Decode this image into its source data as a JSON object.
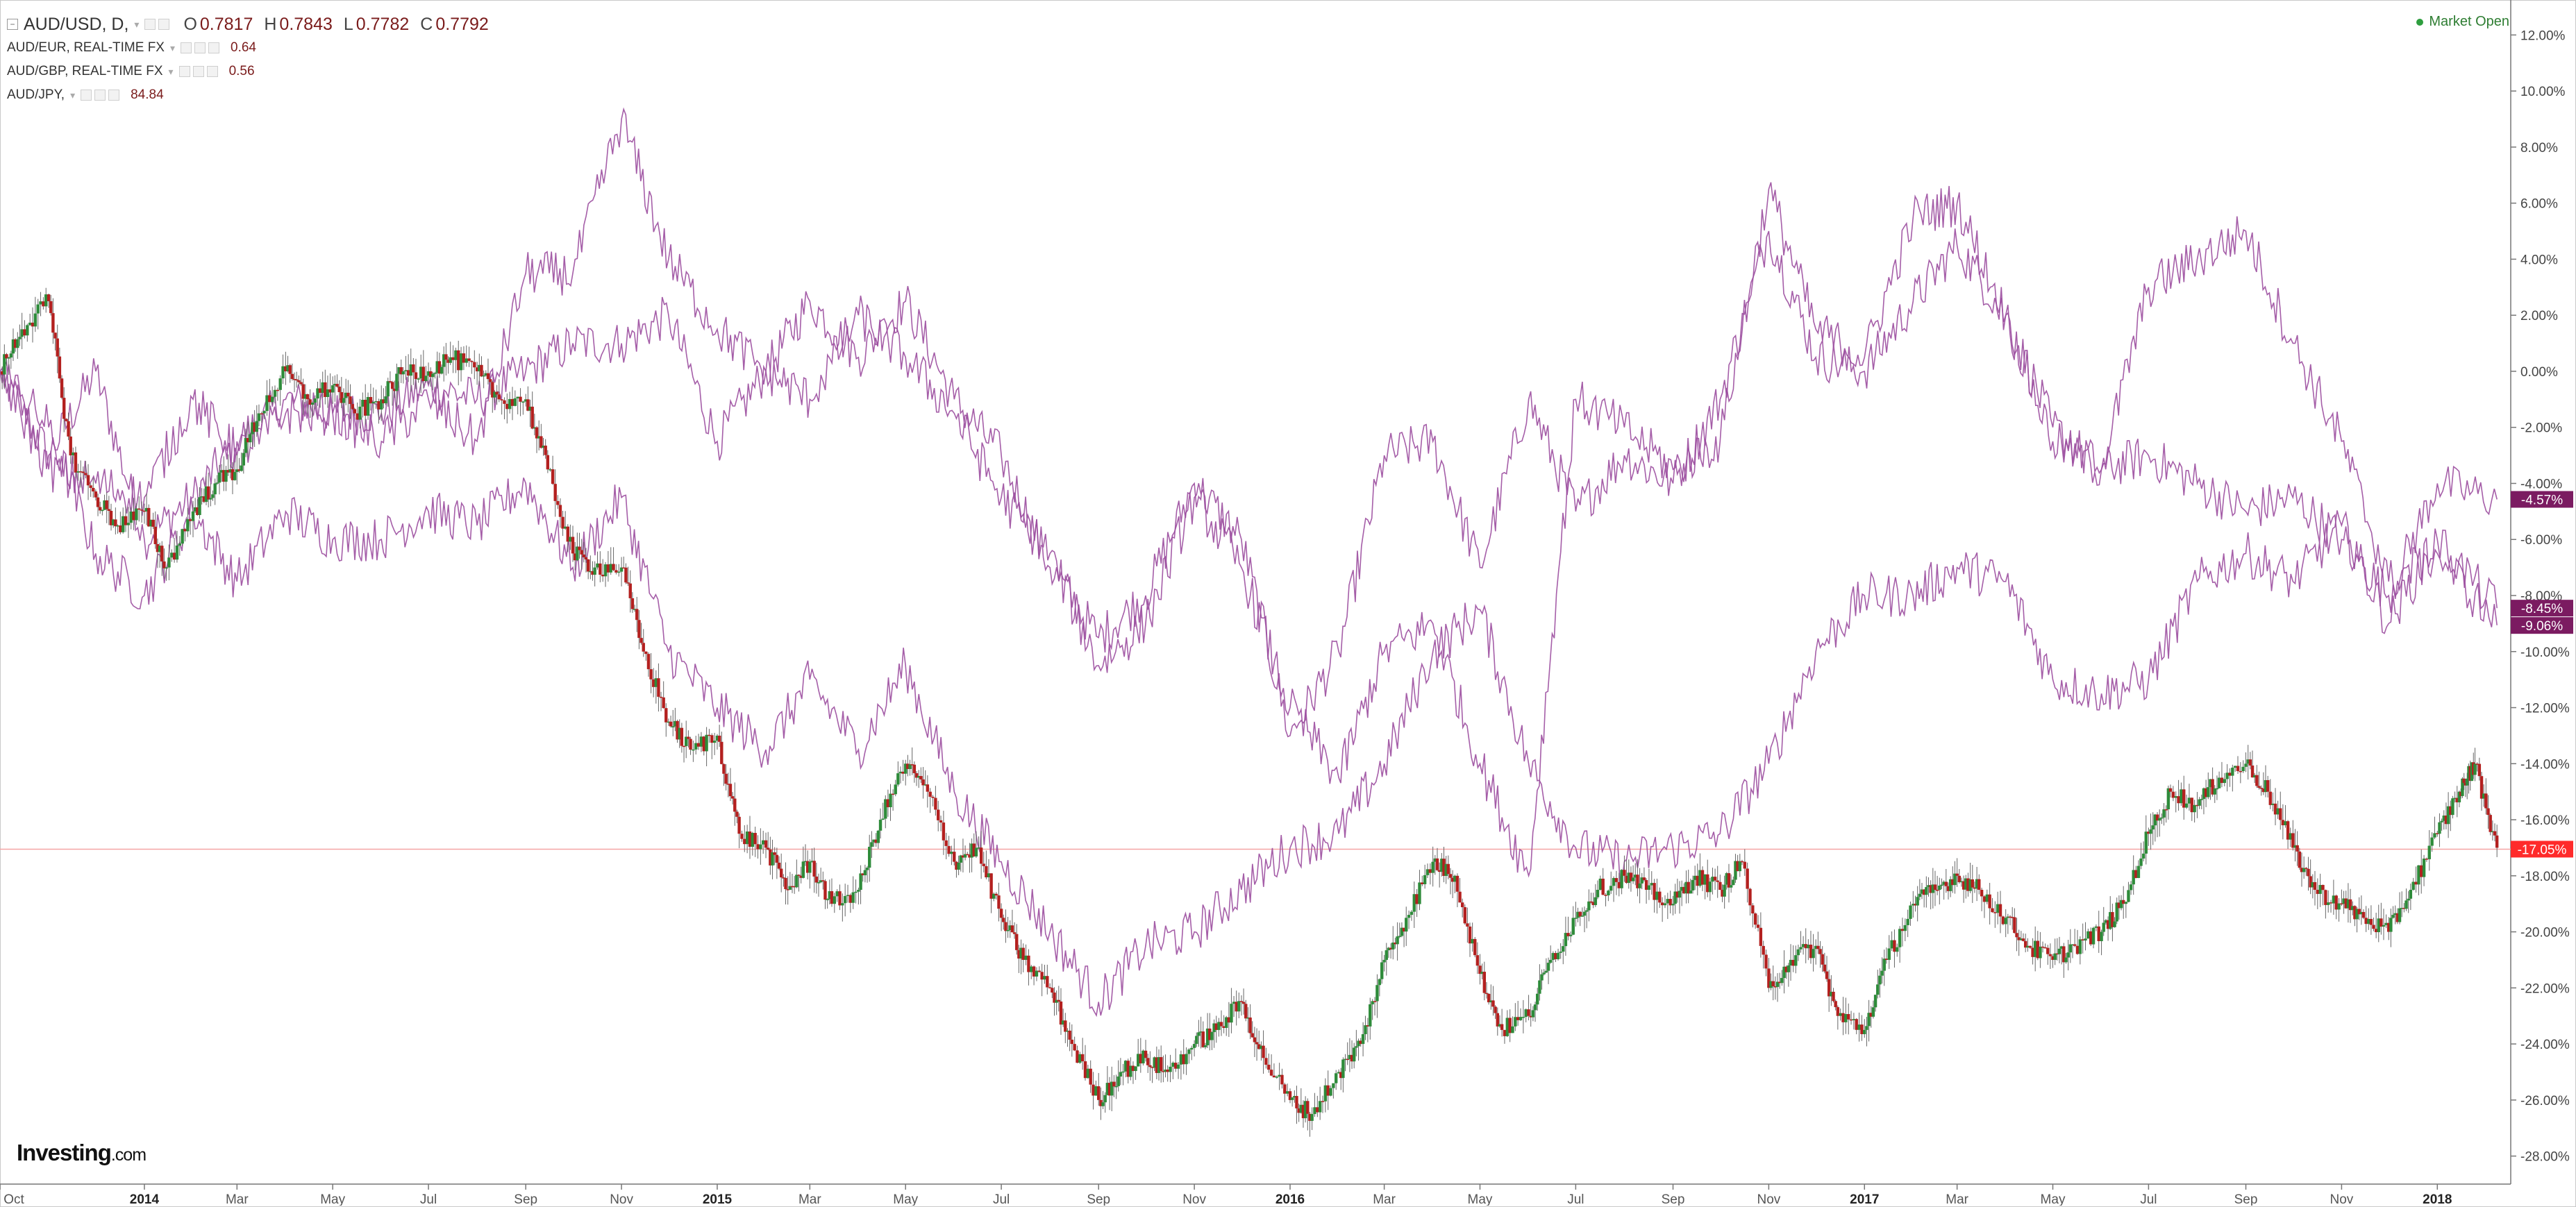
{
  "legend": {
    "main": {
      "symbol": "AUD/USD, D,",
      "open_label": "O",
      "open": "0.7817",
      "high_label": "H",
      "high": "0.7843",
      "low_label": "L",
      "low": "0.7782",
      "close_label": "C",
      "close": "0.7792"
    },
    "compare": [
      {
        "symbol": "AUD/EUR, REAL-TIME FX",
        "value": "0.64"
      },
      {
        "symbol": "AUD/GBP, REAL-TIME FX",
        "value": "0.56"
      },
      {
        "symbol": "AUD/JPY,",
        "value": "84.84"
      }
    ]
  },
  "status": {
    "market_open": "Market Open"
  },
  "logo": {
    "brand": "Investing",
    "suffix": ".com"
  },
  "colors": {
    "up": "#2e8b3a",
    "down": "#b3201f",
    "compare": "#9b4c9e",
    "compare_dark": "#7b1b61",
    "last_price": "#ff2b2b",
    "price_line": "#f6a5a5"
  },
  "chart_data": {
    "type": "line",
    "title": "",
    "ylabel": "",
    "y_unit": "%",
    "ylim": [
      -29,
      13
    ],
    "y_ticks": [
      "12.00%",
      "10.00%",
      "8.00%",
      "6.00%",
      "4.00%",
      "2.00%",
      "0.00%",
      "-2.00%",
      "-4.00%",
      "-6.00%",
      "-8.00%",
      "-10.00%",
      "-12.00%",
      "-14.00%",
      "-16.00%",
      "-18.00%",
      "-20.00%",
      "-22.00%",
      "-24.00%",
      "-26.00%",
      "-28.00%"
    ],
    "xlim": [
      "2013-10-01",
      "2018-02-15"
    ],
    "x_ticks": [
      {
        "label": "Oct",
        "date": "2013-10-01",
        "bold": false
      },
      {
        "label": "2014",
        "date": "2014-01-01",
        "bold": true
      },
      {
        "label": "Mar",
        "date": "2014-03-01",
        "bold": false
      },
      {
        "label": "May",
        "date": "2014-05-01",
        "bold": false
      },
      {
        "label": "Jul",
        "date": "2014-07-01",
        "bold": false
      },
      {
        "label": "Sep",
        "date": "2014-09-01",
        "bold": false
      },
      {
        "label": "Nov",
        "date": "2014-11-01",
        "bold": false
      },
      {
        "label": "2015",
        "date": "2015-01-01",
        "bold": true
      },
      {
        "label": "Mar",
        "date": "2015-03-01",
        "bold": false
      },
      {
        "label": "May",
        "date": "2015-05-01",
        "bold": false
      },
      {
        "label": "Jul",
        "date": "2015-07-01",
        "bold": false
      },
      {
        "label": "Sep",
        "date": "2015-09-01",
        "bold": false
      },
      {
        "label": "Nov",
        "date": "2015-11-01",
        "bold": false
      },
      {
        "label": "2016",
        "date": "2016-01-01",
        "bold": true
      },
      {
        "label": "Mar",
        "date": "2016-03-01",
        "bold": false
      },
      {
        "label": "May",
        "date": "2016-05-01",
        "bold": false
      },
      {
        "label": "Jul",
        "date": "2016-07-01",
        "bold": false
      },
      {
        "label": "Sep",
        "date": "2016-09-01",
        "bold": false
      },
      {
        "label": "Nov",
        "date": "2016-11-01",
        "bold": false
      },
      {
        "label": "2017",
        "date": "2017-01-01",
        "bold": true
      },
      {
        "label": "Mar",
        "date": "2017-03-01",
        "bold": false
      },
      {
        "label": "May",
        "date": "2017-05-01",
        "bold": false
      },
      {
        "label": "Jul",
        "date": "2017-07-01",
        "bold": false
      },
      {
        "label": "Sep",
        "date": "2017-09-01",
        "bold": false
      },
      {
        "label": "Nov",
        "date": "2017-11-01",
        "bold": false
      },
      {
        "label": "2018",
        "date": "2018-01-01",
        "bold": true
      }
    ],
    "last_value_labels": [
      {
        "series": "AUD/USD, D,",
        "text": "-17.05%",
        "value": -17.05
      },
      {
        "series": "AUD/EUR, REAL-TIME FX",
        "text": "-4.57%",
        "value": -4.57
      },
      {
        "series": "AUD/GBP, REAL-TIME FX",
        "text": "-8.45%",
        "value": -8.45
      },
      {
        "series": "AUD/JPY,",
        "text": "-9.06%",
        "value": -9.06
      }
    ],
    "series": [
      {
        "name": "AUD/USD, D,",
        "style": "candlestick",
        "x": [
          "2013-10-01",
          "2013-10-15",
          "2013-11-01",
          "2013-11-15",
          "2013-12-01",
          "2013-12-15",
          "2014-01-01",
          "2014-01-15",
          "2014-02-01",
          "2014-02-15",
          "2014-03-01",
          "2014-03-15",
          "2014-04-01",
          "2014-04-15",
          "2014-05-01",
          "2014-05-15",
          "2014-06-01",
          "2014-06-15",
          "2014-07-01",
          "2014-07-15",
          "2014-08-01",
          "2014-08-15",
          "2014-09-01",
          "2014-09-15",
          "2014-10-01",
          "2014-10-15",
          "2014-11-01",
          "2014-11-15",
          "2014-12-01",
          "2014-12-15",
          "2015-01-01",
          "2015-01-15",
          "2015-02-01",
          "2015-02-15",
          "2015-03-01",
          "2015-03-15",
          "2015-04-01",
          "2015-04-15",
          "2015-05-01",
          "2015-05-15",
          "2015-06-01",
          "2015-06-15",
          "2015-07-01",
          "2015-07-15",
          "2015-08-01",
          "2015-08-15",
          "2015-09-01",
          "2015-09-15",
          "2015-10-01",
          "2015-10-15",
          "2015-11-01",
          "2015-11-15",
          "2015-12-01",
          "2015-12-15",
          "2016-01-01",
          "2016-01-15",
          "2016-02-01",
          "2016-02-15",
          "2016-03-01",
          "2016-03-15",
          "2016-04-01",
          "2016-04-15",
          "2016-05-01",
          "2016-05-15",
          "2016-06-01",
          "2016-06-15",
          "2016-07-01",
          "2016-07-15",
          "2016-08-01",
          "2016-08-15",
          "2016-09-01",
          "2016-09-15",
          "2016-10-01",
          "2016-10-15",
          "2016-11-01",
          "2016-11-15",
          "2016-12-01",
          "2016-12-15",
          "2017-01-01",
          "2017-01-15",
          "2017-02-01",
          "2017-02-15",
          "2017-03-01",
          "2017-03-15",
          "2017-04-01",
          "2017-04-15",
          "2017-05-01",
          "2017-05-15",
          "2017-06-01",
          "2017-06-15",
          "2017-07-01",
          "2017-07-15",
          "2017-08-01",
          "2017-08-15",
          "2017-09-01",
          "2017-09-15",
          "2017-10-01",
          "2017-10-15",
          "2017-11-01",
          "2017-11-15",
          "2017-12-01",
          "2017-12-15",
          "2018-01-01",
          "2018-01-15",
          "2018-01-25",
          "2018-02-08"
        ],
        "values": [
          0.0,
          1.5,
          2.5,
          -3.0,
          -4.5,
          -5.5,
          -5.0,
          -7.0,
          -5.0,
          -4.0,
          -3.5,
          -1.5,
          0.0,
          -1.0,
          -0.5,
          -1.5,
          -1.0,
          0.0,
          0.0,
          0.5,
          0.0,
          -1.0,
          -1.0,
          -3.5,
          -6.5,
          -7.0,
          -7.0,
          -10.0,
          -12.5,
          -13.5,
          -13.0,
          -16.5,
          -17.0,
          -18.5,
          -17.5,
          -19.0,
          -18.5,
          -16.0,
          -14.0,
          -15.0,
          -17.5,
          -17.0,
          -19.5,
          -21.0,
          -22.0,
          -24.0,
          -26.0,
          -25.0,
          -24.5,
          -25.0,
          -24.0,
          -23.5,
          -22.5,
          -24.5,
          -26.0,
          -26.5,
          -25.0,
          -24.0,
          -21.0,
          -19.5,
          -17.5,
          -18.0,
          -21.5,
          -23.5,
          -23.0,
          -21.0,
          -19.5,
          -18.5,
          -18.0,
          -18.5,
          -19.0,
          -18.0,
          -18.5,
          -17.5,
          -22.0,
          -21.0,
          -20.5,
          -23.0,
          -23.5,
          -21.0,
          -19.0,
          -18.5,
          -18.0,
          -18.5,
          -19.5,
          -20.5,
          -21.0,
          -20.5,
          -20.0,
          -19.0,
          -16.5,
          -15.0,
          -15.5,
          -14.5,
          -14.0,
          -15.0,
          -17.0,
          -18.5,
          -19.0,
          -19.5,
          -20.0,
          -18.5,
          -16.5,
          -15.0,
          -14.0,
          -17.0
        ]
      },
      {
        "name": "AUD/EUR, REAL-TIME FX",
        "style": "line",
        "x": [
          "2013-10-01",
          "2013-11-01",
          "2013-12-01",
          "2014-01-01",
          "2014-02-01",
          "2014-03-01",
          "2014-04-01",
          "2014-05-01",
          "2014-06-01",
          "2014-07-01",
          "2014-08-01",
          "2014-09-01",
          "2014-10-01",
          "2014-11-01",
          "2014-12-01",
          "2015-01-01",
          "2015-02-01",
          "2015-03-01",
          "2015-04-01",
          "2015-05-01",
          "2015-06-01",
          "2015-07-01",
          "2015-08-01",
          "2015-09-01",
          "2015-10-01",
          "2015-11-01",
          "2015-12-01",
          "2016-01-01",
          "2016-02-01",
          "2016-03-01",
          "2016-04-01",
          "2016-05-01",
          "2016-06-01",
          "2016-07-01",
          "2016-08-01",
          "2016-09-01",
          "2016-10-01",
          "2016-11-01",
          "2016-12-01",
          "2017-01-01",
          "2017-02-01",
          "2017-03-01",
          "2017-04-01",
          "2017-05-01",
          "2017-06-01",
          "2017-07-01",
          "2017-08-01",
          "2017-09-01",
          "2017-10-01",
          "2017-11-01",
          "2017-12-01",
          "2018-01-01",
          "2018-02-08"
        ],
        "values": [
          0.0,
          -3.0,
          0.0,
          -6.0,
          -4.5,
          -2.5,
          -1.0,
          -1.5,
          -1.5,
          -0.5,
          -1.0,
          0.0,
          1.0,
          1.0,
          2.0,
          -2.5,
          0.0,
          2.5,
          0.5,
          2.5,
          -1.0,
          -3.0,
          -7.0,
          -9.5,
          -8.0,
          -4.0,
          -6.0,
          -13.0,
          -10.0,
          -3.0,
          -2.5,
          -7.0,
          -1.0,
          -5.0,
          -3.0,
          -4.0,
          -1.0,
          5.0,
          0.5,
          0.0,
          2.5,
          4.5,
          2.0,
          -2.0,
          -3.5,
          -3.0,
          -4.0,
          -5.0,
          -4.5,
          -6.0,
          -8.0,
          -4.0,
          -4.57
        ]
      },
      {
        "name": "AUD/GBP, REAL-TIME FX",
        "style": "line",
        "x": [
          "2013-10-01",
          "2013-11-01",
          "2013-12-01",
          "2014-01-01",
          "2014-02-01",
          "2014-03-01",
          "2014-04-01",
          "2014-05-01",
          "2014-06-01",
          "2014-07-01",
          "2014-08-01",
          "2014-09-01",
          "2014-10-01",
          "2014-11-01",
          "2014-12-01",
          "2015-01-01",
          "2015-02-01",
          "2015-03-01",
          "2015-04-01",
          "2015-05-01",
          "2015-06-01",
          "2015-07-01",
          "2015-08-01",
          "2015-09-01",
          "2015-10-01",
          "2015-11-01",
          "2015-12-01",
          "2016-01-01",
          "2016-02-01",
          "2016-03-01",
          "2016-04-01",
          "2016-05-01",
          "2016-06-01",
          "2016-07-01",
          "2016-08-01",
          "2016-09-01",
          "2016-10-01",
          "2016-11-01",
          "2016-12-01",
          "2017-01-01",
          "2017-02-01",
          "2017-03-01",
          "2017-04-01",
          "2017-05-01",
          "2017-06-01",
          "2017-07-01",
          "2017-08-01",
          "2017-09-01",
          "2017-10-01",
          "2017-11-01",
          "2017-12-01",
          "2018-01-01",
          "2018-02-08"
        ],
        "values": [
          0.0,
          -2.0,
          -6.5,
          -8.0,
          -5.0,
          -7.5,
          -5.0,
          -6.0,
          -6.0,
          -5.0,
          -5.5,
          -4.0,
          -7.0,
          -4.5,
          -10.0,
          -12.0,
          -13.5,
          -11.0,
          -13.5,
          -10.5,
          -15.0,
          -17.5,
          -20.0,
          -22.5,
          -20.5,
          -20.0,
          -18.5,
          -17.0,
          -16.5,
          -14.0,
          -10.0,
          -8.5,
          -14.0,
          -17.0,
          -17.5,
          -17.0,
          -16.5,
          -14.0,
          -10.0,
          -8.0,
          -8.0,
          -7.0,
          -7.5,
          -11.0,
          -11.5,
          -11.0,
          -7.5,
          -6.5,
          -7.5,
          -5.5,
          -9.0,
          -6.0,
          -8.45
        ]
      },
      {
        "name": "AUD/JPY,",
        "style": "line",
        "x": [
          "2013-10-01",
          "2013-11-01",
          "2013-12-01",
          "2014-01-01",
          "2014-02-01",
          "2014-03-01",
          "2014-04-01",
          "2014-05-01",
          "2014-06-01",
          "2014-07-01",
          "2014-08-01",
          "2014-09-01",
          "2014-10-01",
          "2014-11-01",
          "2014-12-01",
          "2015-01-01",
          "2015-02-01",
          "2015-03-01",
          "2015-04-01",
          "2015-05-01",
          "2015-06-01",
          "2015-07-01",
          "2015-08-01",
          "2015-09-01",
          "2015-10-01",
          "2015-11-01",
          "2015-12-01",
          "2016-01-01",
          "2016-02-01",
          "2016-03-01",
          "2016-04-01",
          "2016-05-01",
          "2016-06-01",
          "2016-07-01",
          "2016-08-01",
          "2016-09-01",
          "2016-10-01",
          "2016-11-01",
          "2016-12-01",
          "2017-01-01",
          "2017-02-01",
          "2017-03-01",
          "2017-04-01",
          "2017-05-01",
          "2017-06-01",
          "2017-07-01",
          "2017-08-01",
          "2017-09-01",
          "2017-10-01",
          "2017-11-01",
          "2017-12-01",
          "2018-01-01",
          "2018-02-08"
        ],
        "values": [
          0.0,
          -3.5,
          -4.0,
          -4.5,
          -1.0,
          -3.0,
          -1.5,
          -1.5,
          -2.5,
          -1.0,
          -2.5,
          3.5,
          3.5,
          9.0,
          4.0,
          1.5,
          0.0,
          -1.0,
          2.0,
          0.5,
          -1.5,
          -4.5,
          -6.5,
          -10.5,
          -9.0,
          -4.5,
          -7.0,
          -12.0,
          -14.5,
          -10.0,
          -9.0,
          -14.0,
          -18.0,
          -1.0,
          -2.0,
          -3.5,
          -2.5,
          6.5,
          1.5,
          0.5,
          5.5,
          6.0,
          2.0,
          -2.5,
          -3.5,
          3.0,
          4.0,
          5.0,
          1.0,
          -2.5,
          -7.5,
          -6.5,
          -9.06
        ]
      }
    ]
  }
}
